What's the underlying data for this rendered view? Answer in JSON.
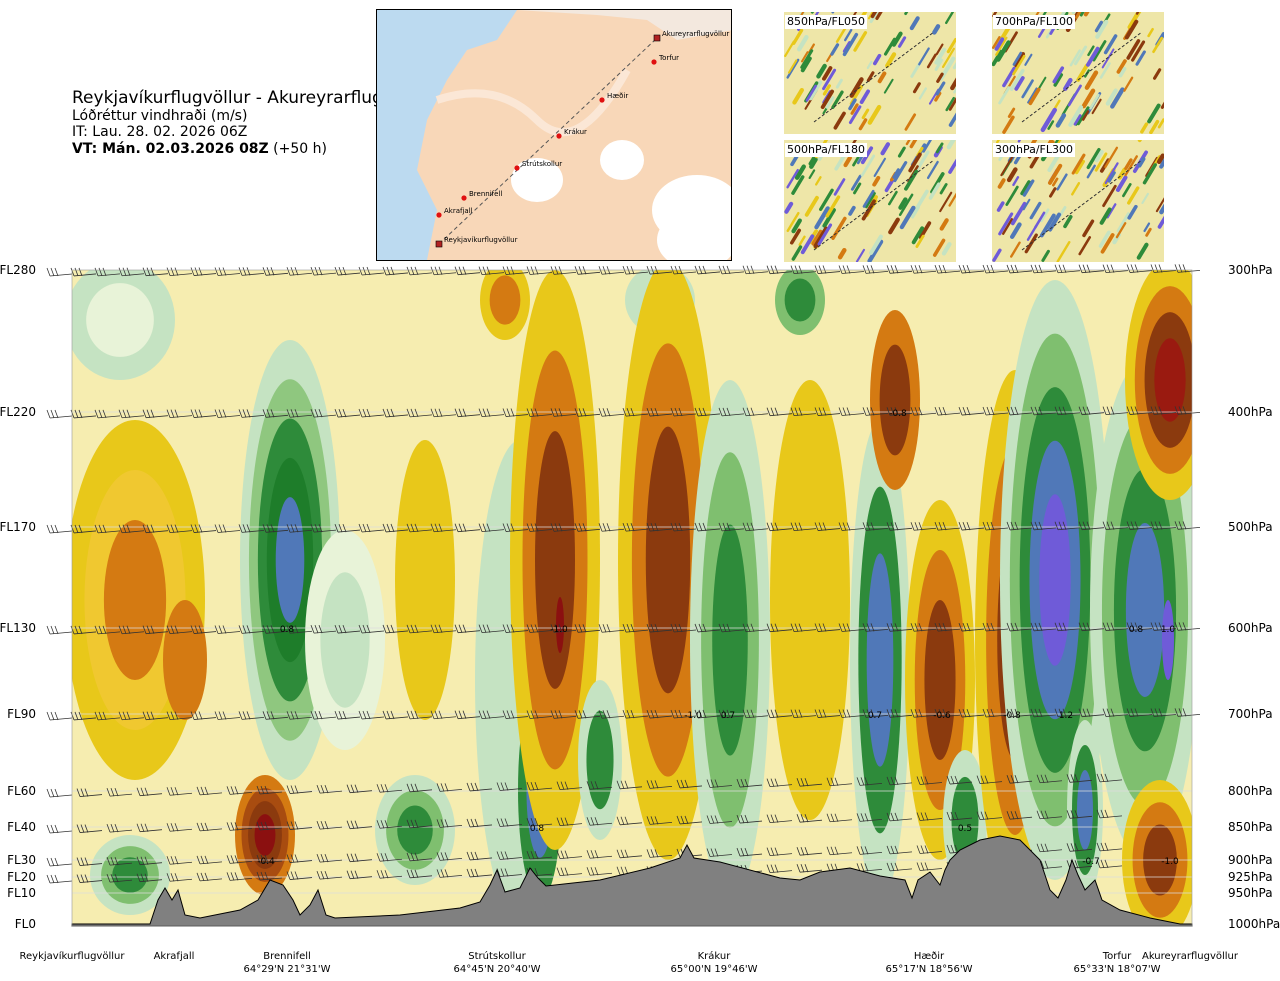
{
  "header": {
    "title": "Reykjavíkurflugvöllur - Akureyrarflugvöllur",
    "subtitle": "Lóðréttur vindhraði (m/s)",
    "it": "IT: Lau. 28. 02. 2026 06Z",
    "vt_bold": "VT: Mán. 02.03.2026 08Z",
    "vt_offset": " (+50 h)"
  },
  "route_map": {
    "points": [
      "Akureyrarflugvöllur",
      "Torfur",
      "Hæðir",
      "Krákur",
      "Strútskollur",
      "Brennifell",
      "Akrafjall",
      "Reykjavíkurflugvöllur"
    ]
  },
  "mini_maps": [
    {
      "label": "850hPa/FL050"
    },
    {
      "label": "700hPa/FL100"
    },
    {
      "label": "500hPa/FL180"
    },
    {
      "label": "300hPa/FL300"
    }
  ],
  "chart_data": {
    "type": "heatmap",
    "title": "Lóðréttur vindhraði (m/s)",
    "levels": [
      {
        "fl": "FL280",
        "hpa": "300hPa"
      },
      {
        "fl": "FL220",
        "hpa": "400hPa"
      },
      {
        "fl": "FL170",
        "hpa": "500hPa"
      },
      {
        "fl": "FL130",
        "hpa": "600hPa"
      },
      {
        "fl": "FL90",
        "hpa": "700hPa"
      },
      {
        "fl": "FL60",
        "hpa": "800hPa"
      },
      {
        "fl": "FL40",
        "hpa": "850hPa"
      },
      {
        "fl": "FL30",
        "hpa": "900hPa"
      },
      {
        "fl": "FL20",
        "hpa": "925hPa"
      },
      {
        "fl": "FL10",
        "hpa": "950hPa"
      },
      {
        "fl": "FL0",
        "hpa": "1000hPa"
      }
    ],
    "locations": [
      {
        "name": "Reykjavíkurflugvöllur",
        "coord": ""
      },
      {
        "name": "Akrafjall",
        "coord": ""
      },
      {
        "name": "Brennifell",
        "coord": "64°29'N 21°31'W"
      },
      {
        "name": "Strútskollur",
        "coord": "64°45'N 20°40'W"
      },
      {
        "name": "Krákur",
        "coord": "65°00'N 19°46'W"
      },
      {
        "name": "Hæðir",
        "coord": "65°17'N 18°56'W"
      },
      {
        "name": "Torfur",
        "coord": "65°33'N 18°07'W"
      },
      {
        "name": "Akureyrarflugvöllur",
        "coord": ""
      }
    ],
    "value_labels": [
      {
        "text": "0.8",
        "level": "FL130",
        "near": "Brennifell"
      },
      {
        "text": "-1.0",
        "level": "FL130",
        "near": "Strútskollur"
      },
      {
        "text": "-0.8",
        "level": "FL220",
        "near": "Hæðir"
      },
      {
        "text": "-1.0",
        "level": "FL90",
        "near": "Krákur"
      },
      {
        "text": "0.7",
        "level": "FL90",
        "near": "Krákur"
      },
      {
        "text": "0.7",
        "level": "FL90",
        "near": "Hæðir"
      },
      {
        "text": "-0.6",
        "level": "FL90",
        "near": "Hæðir"
      },
      {
        "text": "-0.8",
        "level": "FL90",
        "near": "Hæðir"
      },
      {
        "text": "1.2",
        "level": "FL90",
        "near": "Torfur"
      },
      {
        "text": "0.8",
        "level": "FL130",
        "near": "Akureyrarflugvöllur"
      },
      {
        "text": "1.0",
        "level": "FL130",
        "near": "Akureyrarflugvöllur"
      },
      {
        "text": "0.8",
        "level": "FL40",
        "near": "Strútskollur"
      },
      {
        "text": "0.5",
        "level": "FL40",
        "near": "Hæðir"
      },
      {
        "text": "-0.4",
        "level": "FL30",
        "near": "Brennifell"
      },
      {
        "text": "-0.7",
        "level": "FL30",
        "near": "Torfur"
      },
      {
        "text": "-1.0",
        "level": "FL30",
        "near": "Akureyrarflugvöllur"
      }
    ],
    "colors": {
      "strong_down": "#8B3A0E",
      "down": "#D47A12",
      "weak_down": "#E8C81A",
      "neutral": "#F6EDB0",
      "weak_up": "#C5E3C2",
      "up": "#2E8B3A",
      "strong_up": "#5078B8",
      "extreme_up": "#6F5BD8",
      "terrain": "#808080"
    }
  }
}
